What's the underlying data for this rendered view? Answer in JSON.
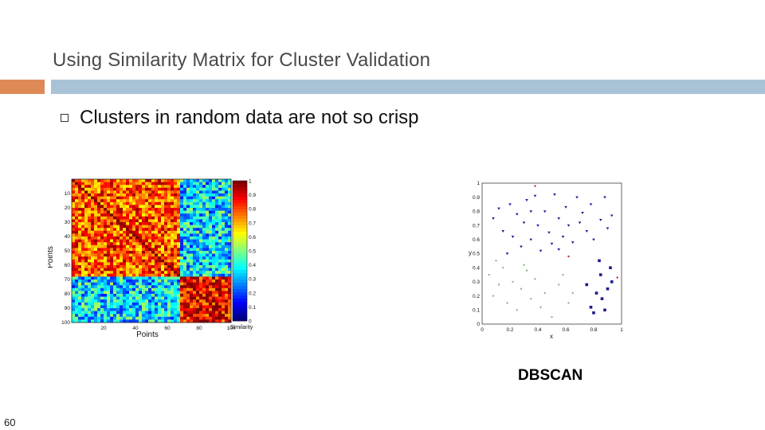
{
  "slide": {
    "title": "Using Similarity Matrix for Cluster Validation",
    "bullet": "Clusters in random data are not so crisp",
    "caption": "DBSCAN",
    "page_number": "60"
  },
  "colors": {
    "accent_orange": "#df8a56",
    "accent_blue": "#a8c3d6"
  },
  "chart_data": [
    {
      "type": "heatmap",
      "xlabel": "Points",
      "ylabel": "Points",
      "x_ticks": [
        "20",
        "40",
        "60",
        "80",
        "100"
      ],
      "y_ticks": [
        "10",
        "20",
        "30",
        "40",
        "50",
        "60",
        "70",
        "80",
        "90",
        "100"
      ],
      "colorbar_label": "Similarity",
      "colorbar_ticks": [
        "1",
        "0.9",
        "0.8",
        "0.7",
        "0.6",
        "0.5",
        "0.4",
        "0.3",
        "0.2",
        "0.1",
        "0"
      ],
      "n_points": 100,
      "blocks": [
        {
          "range": [
            1,
            67
          ],
          "similarity": 0.8
        },
        {
          "range": [
            68,
            100
          ],
          "similarity": 0.88
        }
      ],
      "off_block_similarity": 0.35,
      "colormap": "jet"
    },
    {
      "type": "scatter",
      "xlabel": "x",
      "ylabel": "y",
      "xlim": [
        0,
        1
      ],
      "ylim": [
        0,
        1
      ],
      "x_ticks": [
        "0",
        "0.2",
        "0.4",
        "0.6",
        "0.8",
        "1"
      ],
      "y_ticks": [
        "0",
        "0.1",
        "0.2",
        "0.3",
        "0.4",
        "0.5",
        "0.6",
        "0.7",
        "0.8",
        "0.9",
        "1"
      ],
      "series": [
        {
          "marker": "triangle",
          "color": "#1a1a9a",
          "points": [
            [
              0.08,
              0.75
            ],
            [
              0.12,
              0.82
            ],
            [
              0.15,
              0.66
            ],
            [
              0.2,
              0.85
            ],
            [
              0.22,
              0.62
            ],
            [
              0.25,
              0.78
            ],
            [
              0.28,
              0.55
            ],
            [
              0.3,
              0.72
            ],
            [
              0.32,
              0.88
            ],
            [
              0.35,
              0.6
            ],
            [
              0.38,
              0.91
            ],
            [
              0.4,
              0.7
            ],
            [
              0.42,
              0.52
            ],
            [
              0.45,
              0.8
            ],
            [
              0.48,
              0.65
            ],
            [
              0.5,
              0.57
            ],
            [
              0.52,
              0.92
            ],
            [
              0.55,
              0.75
            ],
            [
              0.58,
              0.62
            ],
            [
              0.6,
              0.83
            ],
            [
              0.62,
              0.7
            ],
            [
              0.65,
              0.58
            ],
            [
              0.68,
              0.9
            ],
            [
              0.7,
              0.72
            ],
            [
              0.72,
              0.79
            ],
            [
              0.75,
              0.66
            ],
            [
              0.78,
              0.85
            ],
            [
              0.8,
              0.6
            ],
            [
              0.85,
              0.74
            ],
            [
              0.88,
              0.9
            ],
            [
              0.9,
              0.68
            ],
            [
              0.93,
              0.77
            ],
            [
              0.18,
              0.5
            ],
            [
              0.35,
              0.8
            ],
            [
              0.55,
              0.53
            ]
          ]
        },
        {
          "marker": "square",
          "color": "#1c1c8c",
          "points": [
            [
              0.75,
              0.28
            ],
            [
              0.78,
              0.12
            ],
            [
              0.82,
              0.22
            ],
            [
              0.85,
              0.35
            ],
            [
              0.88,
              0.1
            ],
            [
              0.9,
              0.25
            ],
            [
              0.92,
              0.4
            ],
            [
              0.8,
              0.08
            ],
            [
              0.86,
              0.18
            ],
            [
              0.93,
              0.3
            ],
            [
              0.84,
              0.45
            ]
          ]
        },
        {
          "marker": "dot",
          "color": "#8ab88a",
          "points": [
            [
              0.05,
              0.35
            ],
            [
              0.08,
              0.2
            ],
            [
              0.12,
              0.28
            ],
            [
              0.15,
              0.4
            ],
            [
              0.18,
              0.15
            ],
            [
              0.22,
              0.3
            ],
            [
              0.25,
              0.1
            ],
            [
              0.28,
              0.25
            ],
            [
              0.32,
              0.38
            ],
            [
              0.35,
              0.18
            ],
            [
              0.38,
              0.32
            ],
            [
              0.42,
              0.12
            ],
            [
              0.45,
              0.22
            ],
            [
              0.5,
              0.05
            ],
            [
              0.55,
              0.28
            ],
            [
              0.58,
              0.35
            ],
            [
              0.62,
              0.15
            ],
            [
              0.65,
              0.22
            ],
            [
              0.1,
              0.45
            ],
            [
              0.3,
              0.42
            ]
          ]
        },
        {
          "marker": "dot",
          "color": "#cc2222",
          "points": [
            [
              0.38,
              0.98
            ],
            [
              0.97,
              0.33
            ],
            [
              0.62,
              0.48
            ]
          ]
        }
      ]
    }
  ]
}
